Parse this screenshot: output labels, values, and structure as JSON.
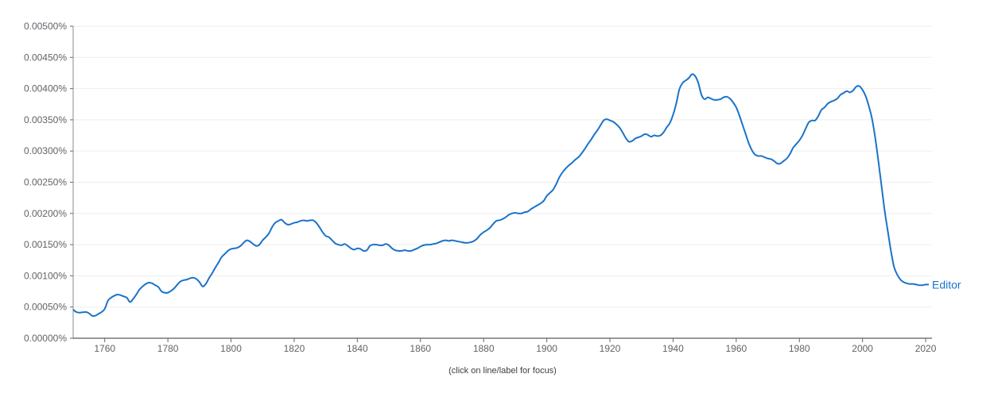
{
  "chart_data": {
    "type": "line",
    "xlim": [
      1750,
      2022
    ],
    "ylim": [
      0,
      0.005
    ],
    "y_ticks": [
      {
        "value": 0,
        "label": "0.00000%"
      },
      {
        "value": 0.0005,
        "label": "0.00050%"
      },
      {
        "value": 0.001,
        "label": "0.00100%"
      },
      {
        "value": 0.0015,
        "label": "0.00150%"
      },
      {
        "value": 0.002,
        "label": "0.00200%"
      },
      {
        "value": 0.0025,
        "label": "0.00250%"
      },
      {
        "value": 0.003,
        "label": "0.00300%"
      },
      {
        "value": 0.0035,
        "label": "0.00350%"
      },
      {
        "value": 0.004,
        "label": "0.00400%"
      },
      {
        "value": 0.0045,
        "label": "0.00450%"
      },
      {
        "value": 0.005,
        "label": "0.00500%"
      }
    ],
    "x_ticks": [
      {
        "value": 1760,
        "label": "1760"
      },
      {
        "value": 1780,
        "label": "1780"
      },
      {
        "value": 1800,
        "label": "1800"
      },
      {
        "value": 1820,
        "label": "1820"
      },
      {
        "value": 1840,
        "label": "1840"
      },
      {
        "value": 1860,
        "label": "1860"
      },
      {
        "value": 1880,
        "label": "1880"
      },
      {
        "value": 1900,
        "label": "1900"
      },
      {
        "value": 1920,
        "label": "1920"
      },
      {
        "value": 1940,
        "label": "1940"
      },
      {
        "value": 1960,
        "label": "1960"
      },
      {
        "value": 1980,
        "label": "1980"
      },
      {
        "value": 2000,
        "label": "2000"
      },
      {
        "value": 2020,
        "label": "2020"
      }
    ],
    "grid": true,
    "series": [
      {
        "name": "Editor",
        "color": "#1a73c9",
        "points": [
          [
            1750,
            0.00046
          ],
          [
            1751,
            0.00042
          ],
          [
            1752,
            0.00041
          ],
          [
            1754,
            0.00042
          ],
          [
            1755,
            0.0004
          ],
          [
            1756,
            0.00036
          ],
          [
            1757,
            0.00036
          ],
          [
            1758,
            0.00039
          ],
          [
            1759,
            0.00042
          ],
          [
            1760,
            0.00047
          ],
          [
            1761,
            0.0006
          ],
          [
            1762,
            0.00065
          ],
          [
            1763,
            0.00068
          ],
          [
            1764,
            0.0007
          ],
          [
            1765,
            0.00069
          ],
          [
            1766,
            0.00067
          ],
          [
            1767,
            0.00065
          ],
          [
            1768,
            0.00058
          ],
          [
            1769,
            0.00063
          ],
          [
            1770,
            0.0007
          ],
          [
            1771,
            0.00078
          ],
          [
            1772,
            0.00083
          ],
          [
            1773,
            0.00087
          ],
          [
            1774,
            0.00089
          ],
          [
            1775,
            0.00088
          ],
          [
            1776,
            0.00085
          ],
          [
            1777,
            0.00082
          ],
          [
            1778,
            0.00075
          ],
          [
            1779,
            0.00073
          ],
          [
            1780,
            0.00073
          ],
          [
            1781,
            0.00076
          ],
          [
            1782,
            0.0008
          ],
          [
            1783,
            0.00086
          ],
          [
            1784,
            0.00091
          ],
          [
            1785,
            0.00093
          ],
          [
            1786,
            0.00094
          ],
          [
            1787,
            0.00096
          ],
          [
            1788,
            0.00097
          ],
          [
            1789,
            0.00095
          ],
          [
            1790,
            0.0009
          ],
          [
            1791,
            0.00083
          ],
          [
            1792,
            0.00087
          ],
          [
            1793,
            0.00096
          ],
          [
            1794,
            0.00104
          ],
          [
            1795,
            0.00113
          ],
          [
            1796,
            0.00121
          ],
          [
            1797,
            0.0013
          ],
          [
            1798,
            0.00135
          ],
          [
            1799,
            0.0014
          ],
          [
            1800,
            0.00143
          ],
          [
            1801,
            0.00144
          ],
          [
            1802,
            0.00145
          ],
          [
            1803,
            0.00148
          ],
          [
            1804,
            0.00153
          ],
          [
            1805,
            0.00157
          ],
          [
            1806,
            0.00155
          ],
          [
            1807,
            0.00151
          ],
          [
            1808,
            0.00148
          ],
          [
            1809,
            0.0015
          ],
          [
            1810,
            0.00157
          ],
          [
            1811,
            0.00162
          ],
          [
            1812,
            0.00168
          ],
          [
            1813,
            0.00178
          ],
          [
            1814,
            0.00185
          ],
          [
            1815,
            0.00188
          ],
          [
            1816,
            0.0019
          ],
          [
            1817,
            0.00185
          ],
          [
            1818,
            0.00182
          ],
          [
            1819,
            0.00183
          ],
          [
            1820,
            0.00185
          ],
          [
            1821,
            0.00186
          ],
          [
            1822,
            0.00188
          ],
          [
            1823,
            0.00189
          ],
          [
            1824,
            0.00188
          ],
          [
            1825,
            0.00189
          ],
          [
            1826,
            0.00189
          ],
          [
            1827,
            0.00185
          ],
          [
            1828,
            0.00178
          ],
          [
            1829,
            0.0017
          ],
          [
            1830,
            0.00164
          ],
          [
            1831,
            0.00162
          ],
          [
            1832,
            0.00157
          ],
          [
            1833,
            0.00152
          ],
          [
            1834,
            0.0015
          ],
          [
            1835,
            0.00149
          ],
          [
            1836,
            0.00151
          ],
          [
            1837,
            0.00148
          ],
          [
            1838,
            0.00144
          ],
          [
            1839,
            0.00142
          ],
          [
            1840,
            0.00144
          ],
          [
            1841,
            0.00143
          ],
          [
            1842,
            0.0014
          ],
          [
            1843,
            0.00141
          ],
          [
            1844,
            0.00148
          ],
          [
            1845,
            0.0015
          ],
          [
            1846,
            0.0015
          ],
          [
            1847,
            0.00149
          ],
          [
            1848,
            0.00149
          ],
          [
            1849,
            0.00151
          ],
          [
            1850,
            0.00149
          ],
          [
            1851,
            0.00144
          ],
          [
            1852,
            0.00141
          ],
          [
            1853,
            0.0014
          ],
          [
            1854,
            0.0014
          ],
          [
            1855,
            0.00141
          ],
          [
            1856,
            0.0014
          ],
          [
            1857,
            0.0014
          ],
          [
            1858,
            0.00142
          ],
          [
            1859,
            0.00144
          ],
          [
            1860,
            0.00147
          ],
          [
            1861,
            0.00149
          ],
          [
            1862,
            0.0015
          ],
          [
            1863,
            0.0015
          ],
          [
            1864,
            0.00151
          ],
          [
            1865,
            0.00152
          ],
          [
            1866,
            0.00154
          ],
          [
            1867,
            0.00156
          ],
          [
            1868,
            0.00157
          ],
          [
            1869,
            0.00156
          ],
          [
            1870,
            0.00157
          ],
          [
            1871,
            0.00156
          ],
          [
            1872,
            0.00155
          ],
          [
            1873,
            0.00154
          ],
          [
            1874,
            0.00153
          ],
          [
            1875,
            0.00153
          ],
          [
            1876,
            0.00154
          ],
          [
            1877,
            0.00156
          ],
          [
            1878,
            0.0016
          ],
          [
            1879,
            0.00166
          ],
          [
            1880,
            0.0017
          ],
          [
            1881,
            0.00173
          ],
          [
            1882,
            0.00177
          ],
          [
            1883,
            0.00183
          ],
          [
            1884,
            0.00188
          ],
          [
            1885,
            0.00189
          ],
          [
            1886,
            0.00191
          ],
          [
            1887,
            0.00194
          ],
          [
            1888,
            0.00198
          ],
          [
            1889,
            0.002
          ],
          [
            1890,
            0.00201
          ],
          [
            1891,
            0.002
          ],
          [
            1892,
            0.002
          ],
          [
            1893,
            0.00202
          ],
          [
            1894,
            0.00203
          ],
          [
            1895,
            0.00207
          ],
          [
            1896,
            0.0021
          ],
          [
            1897,
            0.00213
          ],
          [
            1898,
            0.00216
          ],
          [
            1899,
            0.0022
          ],
          [
            1900,
            0.00228
          ],
          [
            1901,
            0.00233
          ],
          [
            1902,
            0.00238
          ],
          [
            1903,
            0.00247
          ],
          [
            1904,
            0.00258
          ],
          [
            1905,
            0.00266
          ],
          [
            1906,
            0.00272
          ],
          [
            1907,
            0.00277
          ],
          [
            1908,
            0.00281
          ],
          [
            1909,
            0.00286
          ],
          [
            1910,
            0.0029
          ],
          [
            1911,
            0.00296
          ],
          [
            1912,
            0.00303
          ],
          [
            1913,
            0.00311
          ],
          [
            1914,
            0.00318
          ],
          [
            1915,
            0.00326
          ],
          [
            1916,
            0.00333
          ],
          [
            1917,
            0.00341
          ],
          [
            1918,
            0.00349
          ],
          [
            1919,
            0.00351
          ],
          [
            1920,
            0.00349
          ],
          [
            1921,
            0.00347
          ],
          [
            1922,
            0.00343
          ],
          [
            1923,
            0.00338
          ],
          [
            1924,
            0.0033
          ],
          [
            1925,
            0.00321
          ],
          [
            1926,
            0.00315
          ],
          [
            1927,
            0.00316
          ],
          [
            1928,
            0.0032
          ],
          [
            1929,
            0.00322
          ],
          [
            1930,
            0.00324
          ],
          [
            1931,
            0.00327
          ],
          [
            1932,
            0.00326
          ],
          [
            1933,
            0.00323
          ],
          [
            1934,
            0.00325
          ],
          [
            1935,
            0.00324
          ],
          [
            1936,
            0.00325
          ],
          [
            1937,
            0.0033
          ],
          [
            1938,
            0.00338
          ],
          [
            1939,
            0.00345
          ],
          [
            1940,
            0.00358
          ],
          [
            1941,
            0.00376
          ],
          [
            1942,
            0.00399
          ],
          [
            1943,
            0.00409
          ],
          [
            1944,
            0.00413
          ],
          [
            1945,
            0.00417
          ],
          [
            1946,
            0.00423
          ],
          [
            1947,
            0.0042
          ],
          [
            1948,
            0.00409
          ],
          [
            1949,
            0.0039
          ],
          [
            1950,
            0.00383
          ],
          [
            1951,
            0.00386
          ],
          [
            1952,
            0.00384
          ],
          [
            1953,
            0.00382
          ],
          [
            1954,
            0.00382
          ],
          [
            1955,
            0.00383
          ],
          [
            1956,
            0.00386
          ],
          [
            1957,
            0.00387
          ],
          [
            1958,
            0.00384
          ],
          [
            1959,
            0.00378
          ],
          [
            1960,
            0.0037
          ],
          [
            1961,
            0.00357
          ],
          [
            1962,
            0.00342
          ],
          [
            1963,
            0.00327
          ],
          [
            1964,
            0.00312
          ],
          [
            1965,
            0.00301
          ],
          [
            1966,
            0.00294
          ],
          [
            1967,
            0.00292
          ],
          [
            1968,
            0.00292
          ],
          [
            1969,
            0.0029
          ],
          [
            1970,
            0.00288
          ],
          [
            1971,
            0.00287
          ],
          [
            1972,
            0.00284
          ],
          [
            1973,
            0.0028
          ],
          [
            1974,
            0.0028
          ],
          [
            1975,
            0.00284
          ],
          [
            1976,
            0.00288
          ],
          [
            1977,
            0.00295
          ],
          [
            1978,
            0.00305
          ],
          [
            1979,
            0.00311
          ],
          [
            1980,
            0.00317
          ],
          [
            1981,
            0.00325
          ],
          [
            1982,
            0.00336
          ],
          [
            1983,
            0.00346
          ],
          [
            1984,
            0.00349
          ],
          [
            1985,
            0.00349
          ],
          [
            1986,
            0.00356
          ],
          [
            1987,
            0.00366
          ],
          [
            1988,
            0.0037
          ],
          [
            1989,
            0.00376
          ],
          [
            1990,
            0.00379
          ],
          [
            1991,
            0.00381
          ],
          [
            1992,
            0.00384
          ],
          [
            1993,
            0.0039
          ],
          [
            1994,
            0.00393
          ],
          [
            1995,
            0.00396
          ],
          [
            1996,
            0.00394
          ],
          [
            1997,
            0.00397
          ],
          [
            1998,
            0.00403
          ],
          [
            1999,
            0.00404
          ],
          [
            2000,
            0.00398
          ],
          [
            2001,
            0.00388
          ],
          [
            2002,
            0.00372
          ],
          [
            2003,
            0.00352
          ],
          [
            2004,
            0.00322
          ],
          [
            2005,
            0.00285
          ],
          [
            2006,
            0.00245
          ],
          [
            2007,
            0.00205
          ],
          [
            2008,
            0.00172
          ],
          [
            2009,
            0.0014
          ],
          [
            2010,
            0.00114
          ],
          [
            2011,
            0.00102
          ],
          [
            2012,
            0.00094
          ],
          [
            2013,
            0.0009
          ],
          [
            2014,
            0.00088
          ],
          [
            2015,
            0.00087
          ],
          [
            2016,
            0.00087
          ],
          [
            2017,
            0.00086
          ],
          [
            2018,
            0.00085
          ],
          [
            2019,
            0.00085
          ],
          [
            2020,
            0.00086
          ],
          [
            2021,
            0.00086
          ]
        ]
      }
    ],
    "footnote": "(click on line/label for focus)"
  }
}
